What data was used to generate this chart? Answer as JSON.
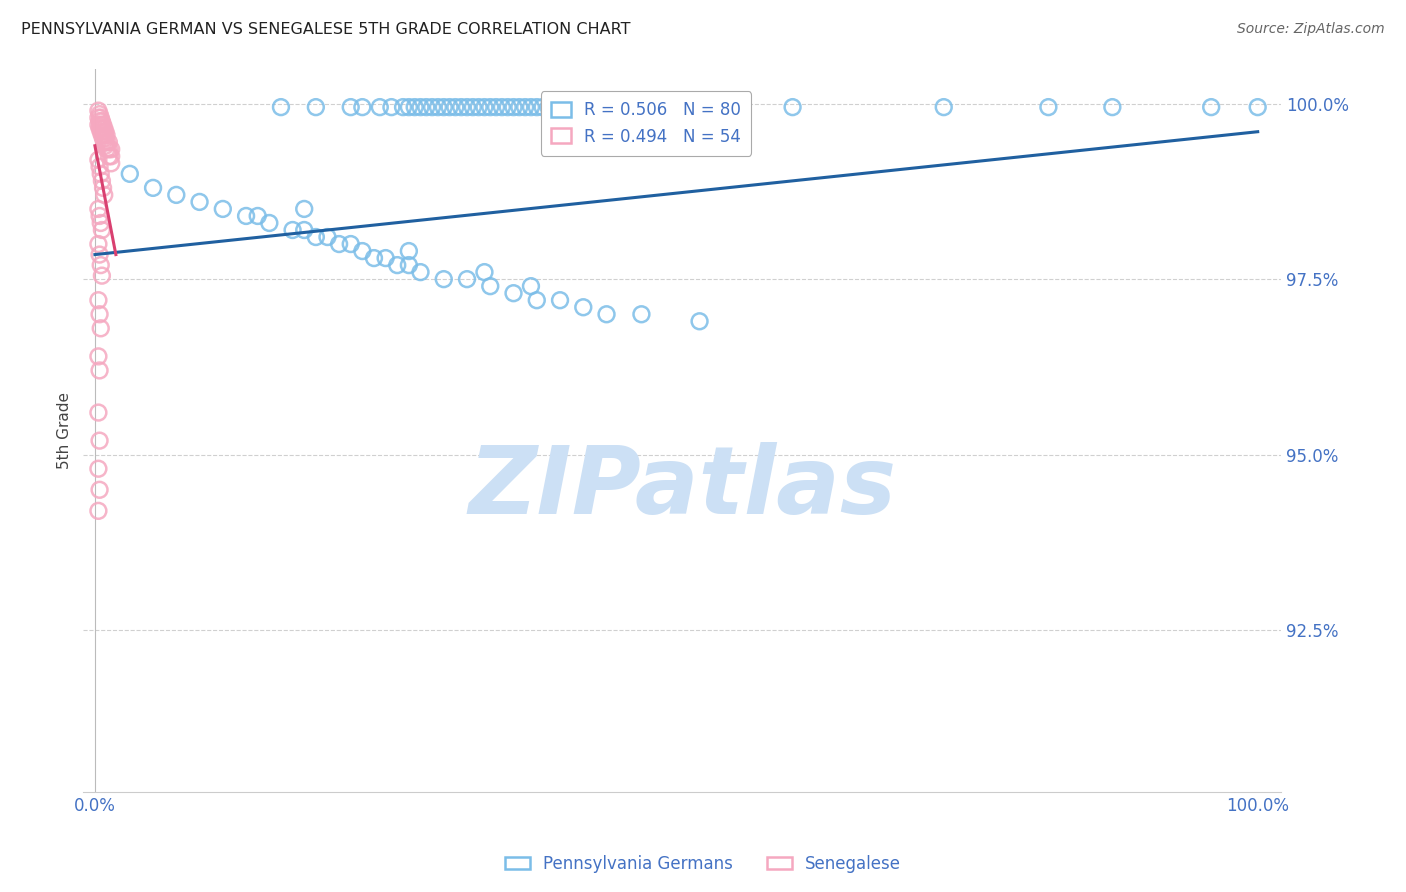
{
  "title": "PENNSYLVANIA GERMAN VS SENEGALESE 5TH GRADE CORRELATION CHART",
  "source": "Source: ZipAtlas.com",
  "ylabel": "5th Grade",
  "watermark": "ZIPatlas",
  "legend1_label": "Pennsylvania Germans",
  "legend2_label": "Senegalese",
  "R_blue": 0.506,
  "N_blue": 80,
  "R_pink": 0.494,
  "N_pink": 54,
  "blue_scatter_color": "#7bbde8",
  "blue_scatter_edge": "#7bbde8",
  "pink_scatter_color": "#f5a8c0",
  "pink_scatter_edge": "#f5a8c0",
  "blue_line_color": "#2060a0",
  "pink_line_color": "#d94070",
  "axis_label_color": "#4472c4",
  "tick_color": "#4472c4",
  "grid_color": "#d0d0d0",
  "title_color": "#222222",
  "watermark_color": "#cce0f5",
  "background_color": "#ffffff",
  "xlim_low": -0.01,
  "xlim_high": 1.02,
  "ylim_low": 0.902,
  "ylim_high": 1.005,
  "ytick_vals": [
    0.925,
    0.95,
    0.975,
    1.0
  ],
  "ytick_labels": [
    "92.5%",
    "95.0%",
    "97.5%",
    "100.0%"
  ],
  "blue_x": [
    0.16,
    0.19,
    0.22,
    0.23,
    0.245,
    0.255,
    0.265,
    0.27,
    0.275,
    0.28,
    0.285,
    0.29,
    0.295,
    0.3,
    0.305,
    0.31,
    0.315,
    0.32,
    0.325,
    0.33,
    0.335,
    0.34,
    0.345,
    0.35,
    0.355,
    0.36,
    0.365,
    0.37,
    0.375,
    0.38,
    0.385,
    0.39,
    0.395,
    0.4,
    0.405,
    0.41,
    0.43,
    0.46,
    0.5,
    0.53,
    0.6,
    0.73,
    0.82,
    0.875,
    0.96,
    1.0,
    0.03,
    0.05,
    0.07,
    0.09,
    0.11,
    0.13,
    0.14,
    0.15,
    0.17,
    0.18,
    0.19,
    0.2,
    0.21,
    0.22,
    0.23,
    0.24,
    0.25,
    0.26,
    0.27,
    0.28,
    0.3,
    0.32,
    0.34,
    0.36,
    0.38,
    0.4,
    0.42,
    0.44,
    0.47,
    0.52,
    0.18,
    0.27,
    0.335,
    0.375
  ],
  "blue_y": [
    0.9995,
    0.9995,
    0.9995,
    0.9995,
    0.9995,
    0.9995,
    0.9995,
    0.9995,
    0.9995,
    0.9995,
    0.9995,
    0.9995,
    0.9995,
    0.9995,
    0.9995,
    0.9995,
    0.9995,
    0.9995,
    0.9995,
    0.9995,
    0.9995,
    0.9995,
    0.9995,
    0.9995,
    0.9995,
    0.9995,
    0.9995,
    0.9995,
    0.9995,
    0.9995,
    0.9995,
    0.9995,
    0.9995,
    0.9995,
    0.9995,
    0.9995,
    0.9995,
    0.9995,
    0.9995,
    0.9995,
    0.9995,
    0.9995,
    0.9995,
    0.9995,
    0.9995,
    0.9995,
    0.99,
    0.988,
    0.987,
    0.986,
    0.985,
    0.984,
    0.984,
    0.983,
    0.982,
    0.982,
    0.981,
    0.981,
    0.98,
    0.98,
    0.979,
    0.978,
    0.978,
    0.977,
    0.977,
    0.976,
    0.975,
    0.975,
    0.974,
    0.973,
    0.972,
    0.972,
    0.971,
    0.97,
    0.97,
    0.969,
    0.985,
    0.979,
    0.976,
    0.974
  ],
  "blue_line_x0": 0.0,
  "blue_line_x1": 1.0,
  "blue_line_y0": 0.9785,
  "blue_line_y1": 0.996,
  "pink_x": [
    0.003,
    0.004,
    0.005,
    0.006,
    0.007,
    0.008,
    0.009,
    0.01,
    0.012,
    0.014,
    0.003,
    0.004,
    0.005,
    0.006,
    0.007,
    0.008,
    0.009,
    0.01,
    0.012,
    0.014,
    0.003,
    0.004,
    0.005,
    0.006,
    0.007,
    0.008,
    0.009,
    0.01,
    0.012,
    0.014,
    0.003,
    0.004,
    0.005,
    0.006,
    0.007,
    0.008,
    0.003,
    0.004,
    0.005,
    0.006,
    0.003,
    0.004,
    0.005,
    0.006,
    0.003,
    0.004,
    0.005,
    0.003,
    0.004,
    0.003,
    0.004,
    0.003,
    0.004,
    0.003
  ],
  "pink_y": [
    0.999,
    0.9985,
    0.998,
    0.9975,
    0.997,
    0.9965,
    0.996,
    0.9955,
    0.9945,
    0.9935,
    0.998,
    0.9975,
    0.997,
    0.9965,
    0.996,
    0.9955,
    0.995,
    0.9945,
    0.9935,
    0.9925,
    0.997,
    0.9965,
    0.996,
    0.9955,
    0.995,
    0.9945,
    0.994,
    0.9935,
    0.9925,
    0.9915,
    0.992,
    0.991,
    0.99,
    0.989,
    0.988,
    0.987,
    0.985,
    0.984,
    0.983,
    0.982,
    0.98,
    0.9785,
    0.977,
    0.9755,
    0.972,
    0.97,
    0.968,
    0.964,
    0.962,
    0.956,
    0.952,
    0.948,
    0.945,
    0.942
  ],
  "pink_line_x0": 0.0,
  "pink_line_x1": 0.018,
  "pink_line_y0": 0.994,
  "pink_line_y1": 0.9785
}
